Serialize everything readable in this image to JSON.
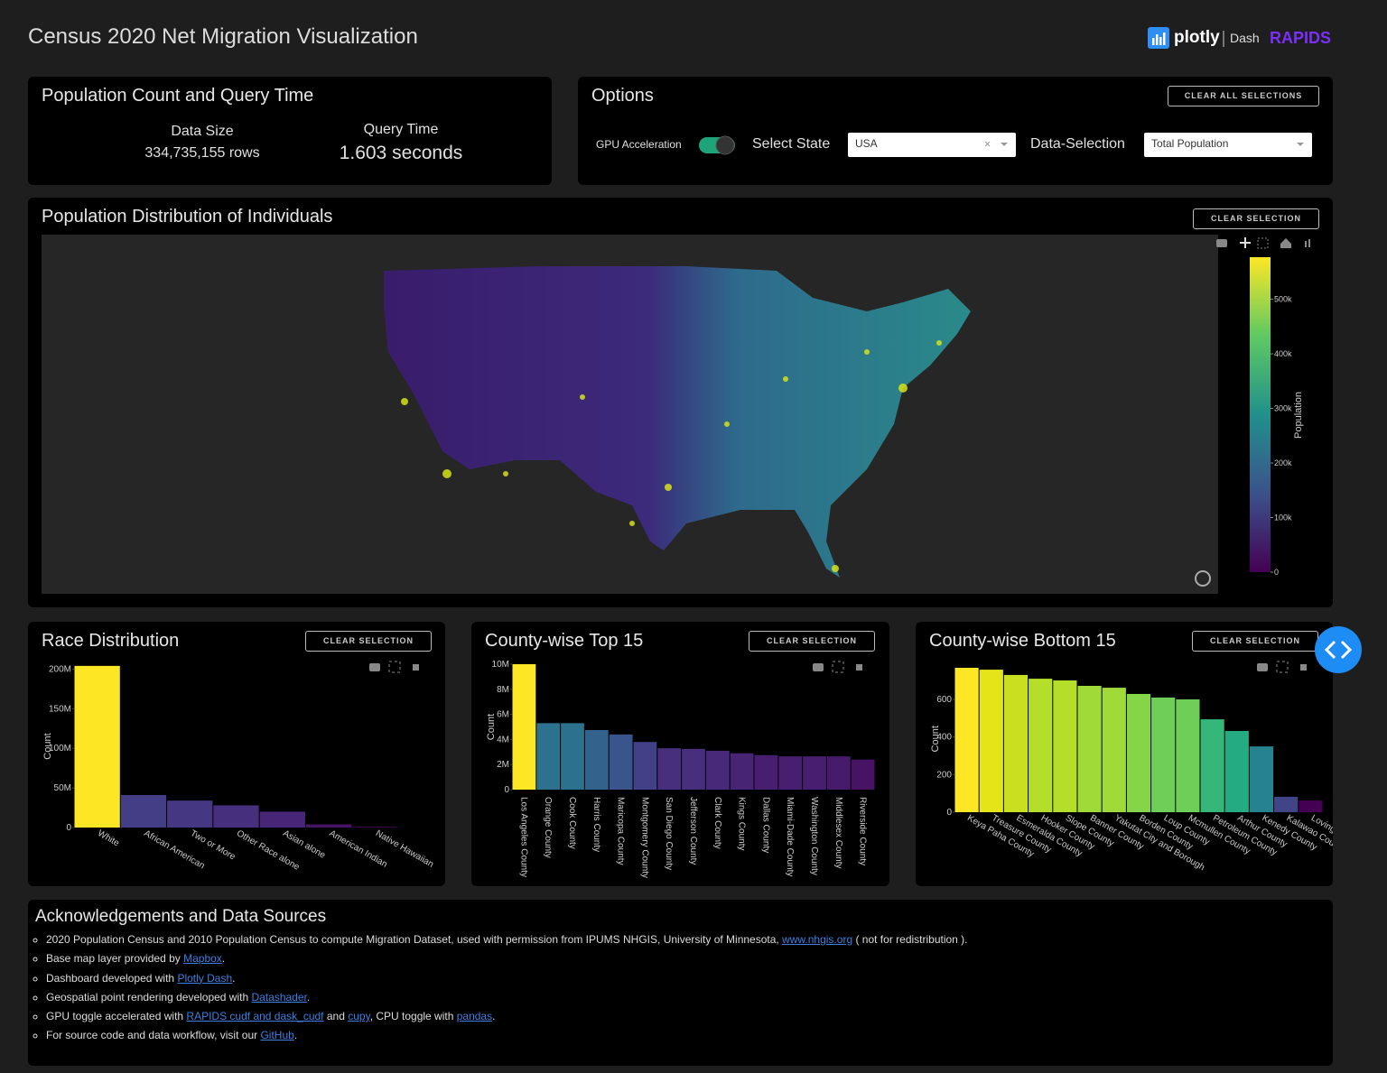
{
  "header": {
    "title": "Census 2020 Net Migration Visualization",
    "logo_plotly": "plotly",
    "logo_dash": "Dash",
    "logo_rapids": "RAPIDS"
  },
  "stats": {
    "title": "Population Count and Query Time",
    "data_size_label": "Data Size",
    "data_size_value": "334,735,155 rows",
    "query_time_label": "Query Time",
    "query_time_value": "1.603 seconds"
  },
  "options": {
    "title": "Options",
    "clear_all": "CLEAR ALL SELECTIONS",
    "gpu_label": "GPU Acceleration",
    "state_label": "Select State",
    "state_value": "USA",
    "selection_label": "Data-Selection",
    "selection_value": "Total Population"
  },
  "map": {
    "title": "Population Distribution of Individuals",
    "clear_button": "CLEAR SELECTION",
    "colorbar_title": "Population",
    "clim": [
      0,
      577000
    ],
    "colorbar_ticks": [
      0,
      {
        "value": 100000,
        "label": "100k"
      },
      {
        "value": 200000,
        "label": "200k"
      },
      {
        "value": 300000,
        "label": "300k"
      },
      {
        "value": 400000,
        "label": "400k"
      },
      {
        "value": 500000,
        "label": "500k"
      }
    ]
  },
  "chart_data": [
    {
      "type": "bar",
      "title": "Race Distribution",
      "clear_button": "CLEAR SELECTION",
      "y_label": "Count",
      "categories": [
        "White",
        "African American",
        "Two or More",
        "Other Race alone",
        "Asian alone",
        "American Indian",
        "Native Hawaiian"
      ],
      "values": [
        204000000,
        41000000,
        34000000,
        28000000,
        20000000,
        4000000,
        1000000
      ],
      "colors": [
        "#fde725",
        "#433e85",
        "#453781",
        "#46307e",
        "#482576",
        "#471365",
        "#440154"
      ],
      "ylim": [
        0,
        205000000
      ],
      "yticks": [
        0,
        {
          "value": 50000000,
          "label": "50M"
        },
        {
          "value": 100000000,
          "label": "100M"
        },
        {
          "value": 150000000,
          "label": "150M"
        },
        {
          "value": 200000000,
          "label": "200M"
        }
      ]
    },
    {
      "type": "bar",
      "title": "County-wise Top 15",
      "clear_button": "CLEAR SELECTION",
      "y_label": "Count",
      "categories": [
        "Los Angeles County",
        "Orange County",
        "Cook County",
        "Harris County",
        "Maricopa County",
        "Montgomery County",
        "San Diego County",
        "Jefferson County",
        "Clark County",
        "Kings County",
        "Dallas County",
        "Miami-Dade County",
        "Washington County",
        "Middlesex County",
        "Riverside County"
      ],
      "values": [
        10000000,
        5300000,
        5300000,
        4750000,
        4400000,
        3800000,
        3300000,
        3250000,
        3100000,
        2900000,
        2750000,
        2650000,
        2650000,
        2650000,
        2400000
      ],
      "colors": [
        "#fde725",
        "#2c728e",
        "#2c728e",
        "#33638d",
        "#3a548c",
        "#424086",
        "#472f7d",
        "#472f7d",
        "#482979",
        "#482475",
        "#481f70",
        "#481f70",
        "#481f70",
        "#481a6c",
        "#471365"
      ],
      "ylim": [
        0,
        10000000
      ],
      "yticks": [
        0,
        {
          "value": 2000000,
          "label": "2M"
        },
        {
          "value": 4000000,
          "label": "4M"
        },
        {
          "value": 6000000,
          "label": "6M"
        },
        {
          "value": 8000000,
          "label": "8M"
        },
        {
          "value": 10000000,
          "label": "10M"
        }
      ]
    },
    {
      "type": "bar",
      "title": "County-wise Bottom 15",
      "clear_button": "CLEAR SELECTION",
      "y_label": "Count",
      "categories": [
        "Keya Paha County",
        "Treasure County",
        "Esmeralda County",
        "Hooker County",
        "Slope County",
        "Banner County",
        "Yakutat City and Borough",
        "Borden County",
        "Loup County",
        "Mcmullen County",
        "Petroleum County",
        "Arthur County",
        "Kenedy County",
        "Kalawao County",
        "Loving County"
      ],
      "values": [
        768,
        758,
        730,
        710,
        701,
        672,
        662,
        629,
        610,
        600,
        494,
        432,
        350,
        82,
        62
      ],
      "colors": [
        "#fde725",
        "#e5e419",
        "#c8e020",
        "#b5de2b",
        "#b5de2b",
        "#a0da39",
        "#a0da39",
        "#86d549",
        "#6ece58",
        "#6ece58",
        "#35b779",
        "#25ab82",
        "#26828e",
        "#414487",
        "#440154"
      ],
      "ylim": [
        0,
        780
      ],
      "yticks": [
        0,
        200,
        400,
        600
      ]
    }
  ],
  "acknowledgements": {
    "title": "Acknowledgements and Data Sources",
    "items": [
      [
        "2020 Population Census and 2010 Population Census to compute Migration Dataset, used with permission from IPUMS NHGIS, University of Minnesota, ",
        "www.nhgis.org",
        " ( not for redistribution )."
      ],
      [
        "Base map layer provided by ",
        "Mapbox",
        "."
      ],
      [
        "Dashboard developed with ",
        "Plotly Dash",
        "."
      ],
      [
        "Geospatial point rendering developed with ",
        "Datashader",
        "."
      ],
      [
        "GPU toggle accelerated with ",
        "RAPIDS cudf and dask_cudf",
        " and ",
        "cupy",
        ", CPU toggle with ",
        "pandas",
        "."
      ],
      [
        "For source code and data workflow, visit our ",
        "GitHub",
        "."
      ]
    ]
  }
}
